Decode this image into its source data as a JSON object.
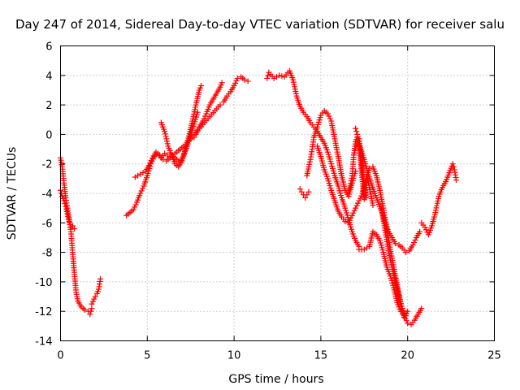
{
  "chart_data": {
    "type": "scatter",
    "title": "Day 247 of 2014, Sidereal Day-to-day VTEC variation (SDTVAR) for receiver salu",
    "xlabel": "GPS time / hours",
    "ylabel": "SDTVAR / TECUs",
    "xlim": [
      0,
      25
    ],
    "ylim": [
      -14,
      6
    ],
    "xticks": [
      0,
      5,
      10,
      15,
      20,
      25
    ],
    "yticks": [
      -14,
      -12,
      -10,
      -8,
      -6,
      -4,
      -2,
      0,
      2,
      4,
      6
    ],
    "xtick_labels": [
      "0",
      "5",
      "10",
      "15",
      "20",
      "25"
    ],
    "ytick_labels": [
      "-14",
      "-12",
      "-10",
      "-8",
      "-6",
      "-4",
      "-2",
      "0",
      "2",
      "4",
      "6"
    ],
    "grid": true,
    "marker": "+",
    "color": "#ff0000",
    "series": [
      {
        "x": [
          0.0,
          0.1,
          0.2,
          0.3,
          0.4,
          0.5,
          0.6,
          0.7,
          0.8,
          0.9,
          1.0,
          1.2,
          1.4,
          1.6,
          1.7,
          1.8
        ],
        "y": [
          -1.6,
          -2.2,
          -3.3,
          -4.3,
          -5.0,
          -5.8,
          -6.6,
          -8.0,
          -9.5,
          -10.7,
          -11.3,
          -11.7,
          -11.9,
          -12.0,
          -12.2,
          -11.8
        ]
      },
      {
        "x": [
          1.8,
          2.0,
          2.1,
          2.2,
          2.3
        ],
        "y": [
          -11.5,
          -11.0,
          -10.8,
          -10.5,
          -9.8
        ]
      },
      {
        "x": [
          0.0,
          0.1,
          0.2,
          0.3,
          0.4,
          0.5,
          0.6,
          0.7,
          0.8
        ],
        "y": [
          -3.8,
          -4.2,
          -4.5,
          -4.9,
          -5.4,
          -5.9,
          -6.3,
          -6.2,
          -6.4
        ]
      },
      {
        "x": [
          3.8,
          4.0,
          4.2,
          4.4,
          4.6,
          4.8,
          5.0,
          5.2,
          5.4,
          5.6,
          5.8,
          6.0,
          6.3,
          6.6,
          6.9,
          7.2,
          7.4,
          7.6,
          7.8,
          8.0,
          8.3,
          8.6,
          8.9,
          9.2
        ],
        "y": [
          -5.5,
          -5.3,
          -5.1,
          -4.6,
          -4.0,
          -3.5,
          -2.8,
          -2.0,
          -1.5,
          -1.3,
          -1.6,
          -1.3,
          -1.5,
          -1.3,
          -1.0,
          -0.7,
          -0.4,
          -0.2,
          0.1,
          0.4,
          0.8,
          1.2,
          1.6,
          2.0
        ]
      },
      {
        "x": [
          4.3,
          4.6,
          4.9,
          5.1,
          5.3,
          5.5,
          5.7,
          5.9,
          6.1,
          6.3,
          6.5,
          6.7,
          6.9,
          7.1,
          7.3,
          7.5,
          7.7,
          7.9
        ],
        "y": [
          -2.9,
          -2.7,
          -2.5,
          -2.1,
          -1.6,
          -1.2,
          -1.4,
          -1.7,
          -1.8,
          -1.6,
          -1.5,
          -1.7,
          -1.9,
          -1.4,
          -0.8,
          0.0,
          0.7,
          1.5
        ]
      },
      {
        "x": [
          5.8,
          5.9,
          6.0,
          6.1,
          6.2,
          6.4,
          6.6,
          6.8,
          7.0,
          7.2,
          7.4,
          7.6,
          7.8,
          8.0,
          8.1
        ],
        "y": [
          0.8,
          0.5,
          0.2,
          -0.3,
          -0.8,
          -1.4,
          -2.0,
          -2.2,
          -1.8,
          -1.0,
          -0.1,
          0.9,
          2.0,
          3.0,
          3.3
        ]
      },
      {
        "x": [
          7.7,
          7.8,
          7.9,
          8.0,
          8.2,
          8.4,
          8.6,
          8.8,
          9.0,
          9.2,
          9.3
        ],
        "y": [
          -0.2,
          0.0,
          0.3,
          0.5,
          0.9,
          1.4,
          2.0,
          2.4,
          2.8,
          3.2,
          3.5
        ]
      },
      {
        "x": [
          9.4,
          9.6,
          9.8,
          10.0,
          10.2,
          10.4,
          10.6,
          10.8
        ],
        "y": [
          2.2,
          2.6,
          2.9,
          3.3,
          3.8,
          3.9,
          3.7,
          3.6
        ]
      },
      {
        "x": [
          11.9,
          12.0,
          12.3,
          12.6,
          12.9,
          13.2,
          13.4,
          13.6,
          13.8,
          14.0,
          14.2,
          14.4,
          14.6,
          14.8,
          15.0,
          15.2,
          15.4,
          15.6,
          15.8,
          16.0,
          16.2,
          16.4,
          16.6,
          16.8,
          17.0,
          17.2
        ],
        "y": [
          3.8,
          4.2,
          3.8,
          4.0,
          3.9,
          4.3,
          3.7,
          2.6,
          1.9,
          1.5,
          1.2,
          0.8,
          0.5,
          0.2,
          -0.2,
          -0.6,
          -1.2,
          -2.0,
          -2.8,
          -3.5,
          -4.3,
          -5.0,
          -5.8,
          -6.6,
          -7.2,
          -7.6
        ]
      },
      {
        "x": [
          17.2,
          17.5,
          17.8,
          18.0,
          18.2,
          18.4,
          18.6,
          18.8,
          19.0,
          19.2,
          19.4,
          19.6,
          19.8,
          20.0,
          20.2,
          20.4,
          20.6,
          20.8
        ],
        "y": [
          -7.8,
          -7.8,
          -7.6,
          -6.6,
          -6.8,
          -7.2,
          -8.0,
          -9.0,
          -9.6,
          -10.4,
          -11.4,
          -12.0,
          -12.3,
          -12.8,
          -12.9,
          -12.6,
          -12.2,
          -11.8
        ]
      },
      {
        "x": [
          13.8,
          13.9,
          14.0,
          14.1,
          14.2,
          14.3
        ],
        "y": [
          -3.7,
          -3.9,
          -4.1,
          -4.3,
          -4.1,
          -3.9
        ]
      },
      {
        "x": [
          14.2,
          14.3,
          14.4,
          14.5,
          14.6,
          14.8,
          15.0,
          15.2,
          15.4,
          15.6,
          15.8,
          16.0,
          16.2,
          16.4,
          16.6,
          16.8,
          17.0
        ],
        "y": [
          -2.8,
          -2.2,
          -1.7,
          -1.0,
          -0.2,
          0.5,
          1.3,
          1.6,
          1.4,
          0.9,
          -0.3,
          -1.5,
          -2.8,
          -3.8,
          -4.2,
          -3.3,
          -2.5
        ]
      },
      {
        "x": [
          14.8,
          15.0,
          15.2,
          15.4,
          15.6,
          15.8,
          16.0,
          16.2,
          16.4,
          16.6,
          16.8,
          17.0,
          17.2,
          17.4,
          17.6,
          17.8,
          18.0,
          18.2,
          18.4,
          18.6,
          18.8,
          19.0,
          19.2,
          19.4,
          19.6,
          19.8,
          20.0
        ],
        "y": [
          -0.8,
          -1.5,
          -2.4,
          -3.0,
          -3.8,
          -4.5,
          -5.2,
          -5.6,
          -5.9,
          -6.0,
          -5.5,
          -5.0,
          -4.5,
          -4.0,
          -3.0,
          -2.3,
          -2.2,
          -2.8,
          -3.8,
          -5.0,
          -6.4,
          -7.8,
          -9.0,
          -10.2,
          -11.5,
          -12.4,
          -12.0
        ]
      },
      {
        "x": [
          17.0,
          17.1,
          17.2,
          17.3,
          17.4,
          17.5,
          17.6,
          17.7,
          17.8,
          17.9,
          18.0
        ],
        "y": [
          0.4,
          0.0,
          -0.8,
          -1.9,
          -3.2,
          -4.4,
          -3.6,
          -3.0,
          -3.6,
          -4.2,
          -4.8
        ]
      },
      {
        "x": [
          16.9,
          17.1,
          17.3,
          17.5,
          17.7,
          17.9,
          18.1,
          18.3,
          18.5,
          18.7,
          18.9,
          19.1,
          19.3,
          19.5,
          19.7,
          19.9,
          20.1,
          20.3,
          20.5,
          20.7
        ],
        "y": [
          -1.4,
          -0.5,
          -1.0,
          -1.7,
          -2.6,
          -3.3,
          -4.0,
          -4.6,
          -5.2,
          -6.0,
          -6.6,
          -7.0,
          -7.4,
          -7.5,
          -7.7,
          -8.0,
          -7.9,
          -7.5,
          -7.0,
          -6.6
        ]
      },
      {
        "x": [
          16.6,
          16.7,
          16.8,
          16.9,
          17.0,
          17.1,
          17.2,
          17.3,
          17.4,
          17.5,
          17.6
        ],
        "y": [
          -3.8,
          -3.5,
          -2.8,
          -1.4,
          -0.5,
          -0.2,
          -0.3,
          -1.2,
          -2.4,
          -3.5,
          -4.3
        ]
      },
      {
        "x": [
          18.5,
          18.7,
          18.9,
          19.1,
          19.3,
          19.5,
          19.7,
          19.9
        ],
        "y": [
          -5.0,
          -6.5,
          -7.9,
          -9.0,
          -10.0,
          -11.0,
          -11.8,
          -12.3
        ]
      },
      {
        "x": [
          20.8,
          21.0,
          21.2,
          21.4,
          21.6,
          21.8,
          22.0,
          22.2,
          22.4,
          22.6,
          22.7,
          22.8
        ],
        "y": [
          -6.0,
          -6.3,
          -6.8,
          -6.2,
          -5.3,
          -4.2,
          -3.6,
          -3.2,
          -2.6,
          -2.0,
          -2.4,
          -3.1
        ]
      }
    ]
  }
}
